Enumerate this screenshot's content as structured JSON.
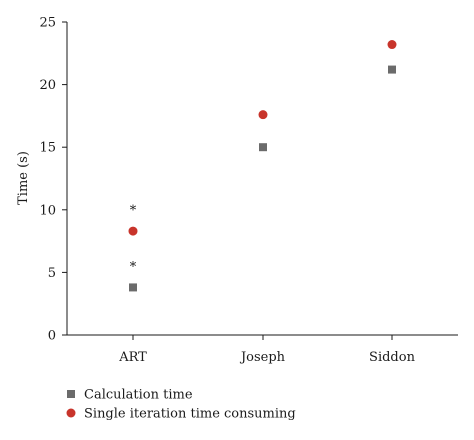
{
  "chart_data": {
    "type": "scatter",
    "ylabel": "Time (s)",
    "xlabel": "",
    "categories": [
      "ART",
      "Joseph",
      "Siddon"
    ],
    "ylim": [
      0,
      25
    ],
    "yticks": [
      0,
      5,
      10,
      15,
      20,
      25
    ],
    "grid": false,
    "legend_position": "bottom-left",
    "series": [
      {
        "name": "Calculation time",
        "marker": "square",
        "color": "#6b6b6b",
        "values": [
          3.8,
          15.0,
          21.2
        ]
      },
      {
        "name": "Single iteration time consuming",
        "marker": "circle",
        "color": "#c8342b",
        "values": [
          8.3,
          17.6,
          23.2
        ]
      }
    ],
    "annotations": [
      {
        "category": "ART",
        "y": 5.6,
        "text": "*"
      },
      {
        "category": "ART",
        "y": 10.1,
        "text": "*"
      }
    ]
  }
}
